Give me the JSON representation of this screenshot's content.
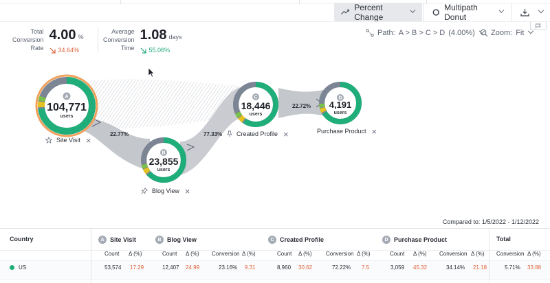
{
  "toolbar": {
    "percent_change": "Percent Change",
    "multipath": "Multipath Donut"
  },
  "metrics": {
    "total_conversion": {
      "label_1": "Total",
      "label_2": "Conversion",
      "label_3": "Rate",
      "value": "4.00",
      "unit": "%",
      "change": "34.64%"
    },
    "avg_conversion": {
      "label_1": "Average",
      "label_2": "Conversion",
      "label_3": "Time",
      "value": "1.08",
      "unit": "days",
      "change": "55.06%"
    }
  },
  "controls": {
    "path_label": "Path:",
    "path_value": "A > B > C > D",
    "path_pct": "(4.00%)",
    "zoom_label": "Zoom:",
    "zoom_value": "Fit"
  },
  "nodes": [
    {
      "letter": "A",
      "value": "104,771",
      "unit": "users",
      "name": "Site Visit"
    },
    {
      "letter": "B",
      "value": "23,855",
      "unit": "users",
      "name": "Blog View"
    },
    {
      "letter": "C",
      "value": "18,446",
      "unit": "users",
      "name": "Created Profile"
    },
    {
      "letter": "D",
      "value": "4,191",
      "unit": "users",
      "name": "Purchase Product"
    }
  ],
  "links": {
    "a_b": "22.77%",
    "b_c": "77.33%",
    "c_d": "22.72%"
  },
  "compared_to": "Compared to: 1/5/2022 - 1/12/2022",
  "table": {
    "country_header": "Country",
    "total_header": "Total",
    "sub": {
      "count": "Count",
      "delta": "Δ (%)",
      "conversion": "Conversion"
    },
    "row": {
      "country": "US",
      "site_visit": {
        "count": "53,574",
        "delta": "17.29"
      },
      "blog_view": {
        "count": "12,407",
        "delta": "24.99",
        "conversion": "23.16%",
        "conv_delta": "9.31"
      },
      "created_profile": {
        "count": "8,960",
        "delta": "30.62",
        "conversion": "72.22%",
        "conv_delta": "7.5"
      },
      "purchase_product": {
        "count": "3,059",
        "delta": "45.32",
        "conversion": "34.14%",
        "conv_delta": "21.18"
      },
      "total": {
        "conversion": "5.71%",
        "conv_delta": "33.88"
      }
    }
  },
  "colors": {
    "accent_green": "#1fae7a",
    "neg_orange": "#e0603a",
    "selected_ring": "#f0a05a",
    "gray_ring": "#7c8594"
  }
}
